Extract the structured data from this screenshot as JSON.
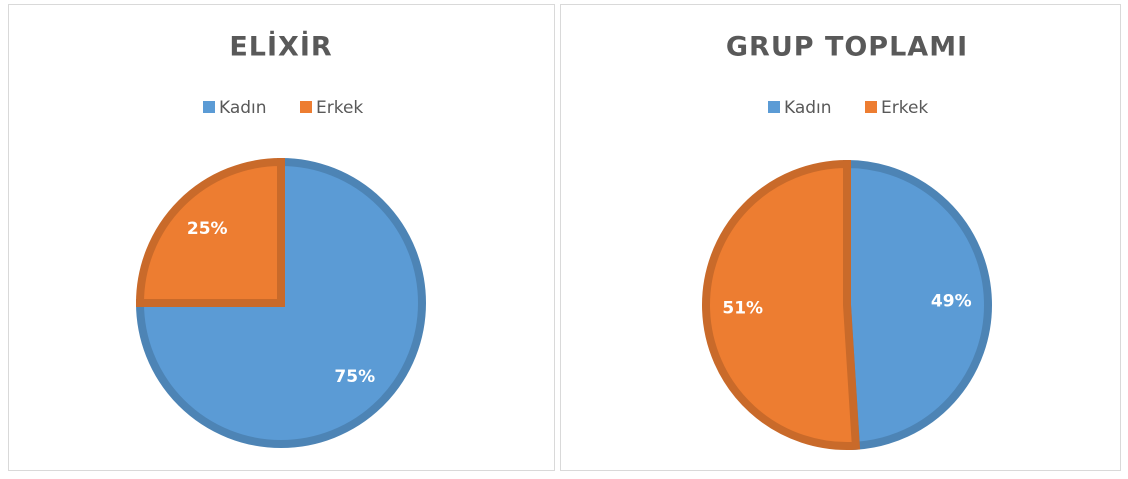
{
  "chart_data": [
    {
      "type": "pie",
      "title": "ELİXİR",
      "categories": [
        "Kadın",
        "Erkek"
      ],
      "values": [
        75,
        25
      ],
      "value_labels": [
        "75%",
        "25%"
      ],
      "colors": [
        "#5b9bd5",
        "#ed7d31"
      ]
    },
    {
      "type": "pie",
      "title": "GRUP TOPLAMI",
      "categories": [
        "Kadın",
        "Erkek"
      ],
      "values": [
        49,
        51
      ],
      "value_labels": [
        "49%",
        "51%"
      ],
      "colors": [
        "#5b9bd5",
        "#ed7d31"
      ]
    }
  ]
}
